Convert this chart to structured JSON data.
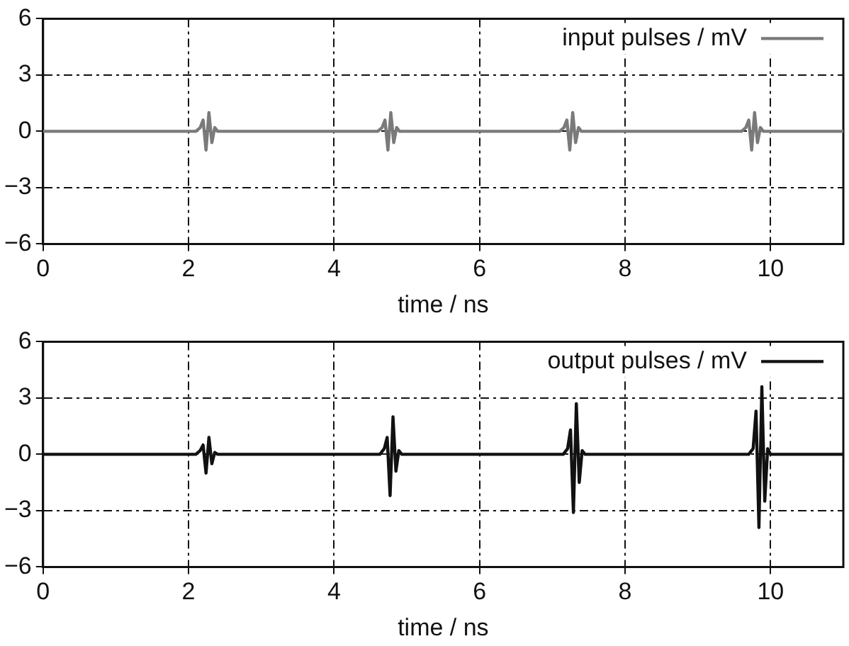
{
  "chart_data": [
    {
      "type": "line",
      "xlabel": "time / ns",
      "xlim": [
        0,
        11
      ],
      "xticks": [
        0,
        2,
        4,
        6,
        8,
        10
      ],
      "ylim": [
        -6,
        6
      ],
      "yticks": [
        -6,
        -3,
        0,
        3,
        6
      ],
      "grid": true,
      "legend": "top right",
      "marker": "none",
      "line_style": "solid",
      "series": [
        {
          "name": "input pulses / mV",
          "color": "#7a7a7a",
          "x": [
            0,
            2.1,
            2.16,
            2.2,
            2.24,
            2.28,
            2.32,
            2.36,
            2.4,
            4.6,
            4.66,
            4.7,
            4.74,
            4.78,
            4.82,
            4.86,
            4.9,
            7.1,
            7.16,
            7.2,
            7.24,
            7.28,
            7.32,
            7.36,
            7.4,
            9.6,
            9.66,
            9.7,
            9.74,
            9.78,
            9.82,
            9.86,
            9.9,
            11
          ],
          "values": [
            0,
            0,
            0.2,
            0.6,
            -1.0,
            1.0,
            -0.6,
            0.2,
            0,
            0,
            0.2,
            0.6,
            -1.0,
            1.0,
            -0.6,
            0.2,
            0,
            0,
            0.2,
            0.6,
            -1.0,
            1.0,
            -0.6,
            0.2,
            0,
            0,
            0.2,
            0.6,
            -1.0,
            1.0,
            -0.6,
            0.2,
            0,
            0
          ]
        }
      ]
    },
    {
      "type": "line",
      "xlabel": "time / ns",
      "xlim": [
        0,
        11
      ],
      "xticks": [
        0,
        2,
        4,
        6,
        8,
        10
      ],
      "ylim": [
        -6,
        6
      ],
      "yticks": [
        -6,
        -3,
        0,
        3,
        6
      ],
      "grid": true,
      "legend": "top right",
      "marker": "none",
      "line_style": "solid",
      "series": [
        {
          "name": "output pulses / mV",
          "color": "#111111",
          "x": [
            0,
            2.1,
            2.16,
            2.2,
            2.24,
            2.28,
            2.32,
            2.36,
            2.4,
            4.63,
            4.69,
            4.73,
            4.77,
            4.81,
            4.85,
            4.89,
            4.93,
            7.15,
            7.21,
            7.25,
            7.29,
            7.33,
            7.37,
            7.41,
            7.45,
            9.7,
            9.76,
            9.8,
            9.84,
            9.88,
            9.92,
            9.96,
            10.0,
            11
          ],
          "values": [
            0,
            0,
            0.2,
            0.5,
            -1.0,
            0.9,
            -0.5,
            0.1,
            0,
            0,
            0.3,
            0.9,
            -2.2,
            2.0,
            -0.9,
            0.2,
            0,
            0,
            0.3,
            1.3,
            -3.1,
            2.7,
            -1.5,
            0.2,
            0,
            0,
            0.3,
            2.3,
            -3.9,
            3.6,
            -2.5,
            0.3,
            0,
            0
          ]
        }
      ]
    }
  ]
}
